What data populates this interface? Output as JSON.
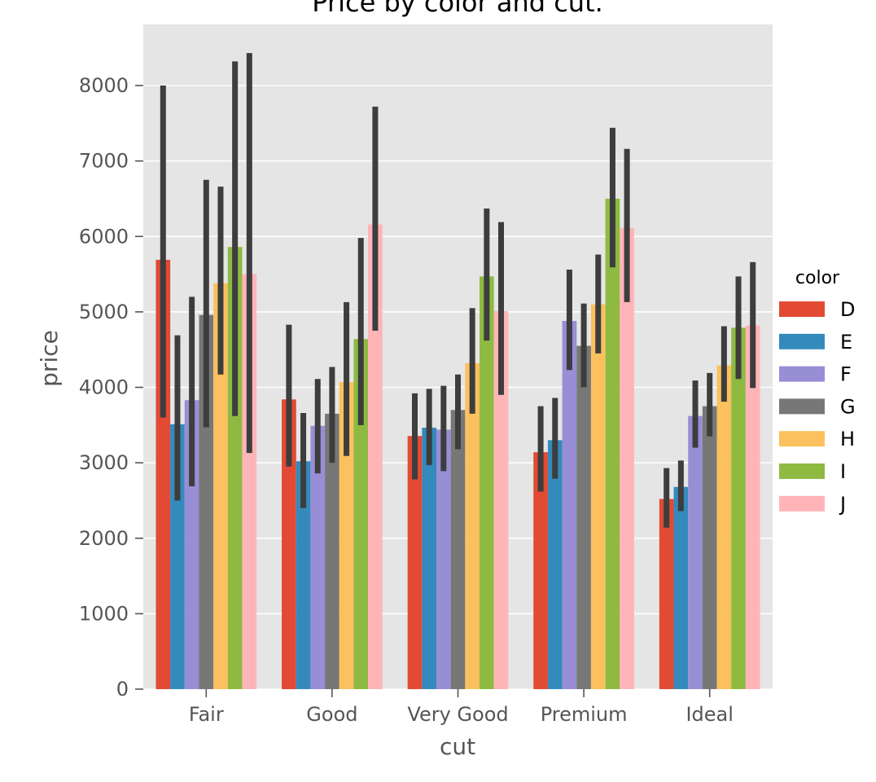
{
  "chart_data": {
    "type": "bar",
    "title": "Price by color and cut.",
    "xlabel": "cut",
    "ylabel": "price",
    "categories": [
      "Fair",
      "Good",
      "Very Good",
      "Premium",
      "Ideal"
    ],
    "ylim": [
      0,
      8800
    ],
    "yticks": [
      0,
      1000,
      2000,
      3000,
      4000,
      5000,
      6000,
      7000,
      8000
    ],
    "grid": true,
    "background": "#e5e5e5",
    "errorbar_color": "#3d3d3d",
    "legend": {
      "title": "color",
      "placement": "right"
    },
    "series": [
      {
        "name": "D",
        "color": "#e24a33",
        "values": [
          5690,
          3840,
          3355,
          3140,
          2520
        ],
        "ci_low": [
          3600,
          2950,
          2780,
          2620,
          2140
        ],
        "ci_high": [
          8000,
          4830,
          3920,
          3750,
          2930
        ]
      },
      {
        "name": "E",
        "color": "#348abd",
        "values": [
          3510,
          3020,
          3465,
          3300,
          2680
        ],
        "ci_low": [
          2500,
          2400,
          2970,
          2790,
          2360
        ],
        "ci_high": [
          4690,
          3660,
          3980,
          3860,
          3030
        ]
      },
      {
        "name": "F",
        "color": "#988ed5",
        "values": [
          3830,
          3490,
          3440,
          4880,
          3620
        ],
        "ci_low": [
          2690,
          2860,
          2890,
          4230,
          3200
        ],
        "ci_high": [
          5200,
          4110,
          4020,
          5560,
          4090
        ]
      },
      {
        "name": "G",
        "color": "#777777",
        "values": [
          4960,
          3650,
          3700,
          4550,
          3750
        ],
        "ci_low": [
          3470,
          3000,
          3180,
          4000,
          3350
        ],
        "ci_high": [
          6750,
          4270,
          4170,
          5110,
          4190
        ]
      },
      {
        "name": "H",
        "color": "#fbc15e",
        "values": [
          5380,
          4070,
          4320,
          5100,
          4290
        ],
        "ci_low": [
          4170,
          3090,
          3650,
          4450,
          3810
        ],
        "ci_high": [
          6660,
          5130,
          5050,
          5760,
          4810
        ]
      },
      {
        "name": "I",
        "color": "#8eba42",
        "values": [
          5860,
          4640,
          5470,
          6500,
          4790
        ],
        "ci_low": [
          3620,
          3500,
          4620,
          5590,
          4110
        ],
        "ci_high": [
          8320,
          5980,
          6370,
          7440,
          5470
        ]
      },
      {
        "name": "J",
        "color": "#ffb5b8",
        "values": [
          5500,
          6160,
          5010,
          6110,
          4820
        ],
        "ci_low": [
          3130,
          4750,
          3900,
          5130,
          3990
        ],
        "ci_high": [
          8430,
          7720,
          6190,
          7160,
          5660
        ]
      }
    ]
  }
}
